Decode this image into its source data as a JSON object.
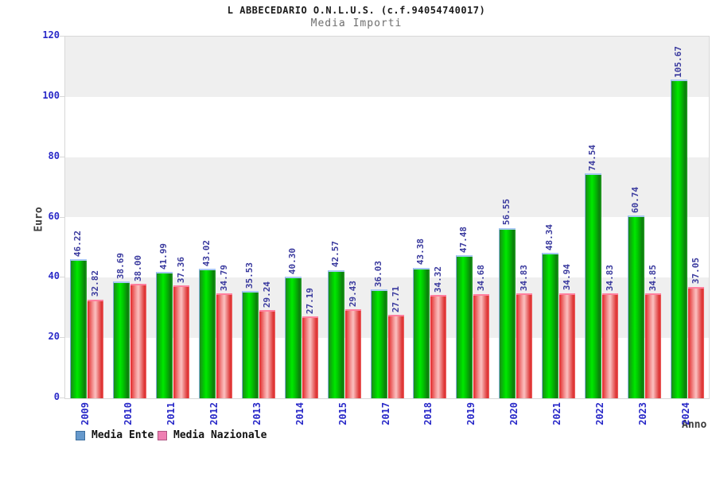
{
  "header": {
    "title": "L ABBECEDARIO O.N.L.U.S. (c.f.94054740017)",
    "subtitle": "Media Importi"
  },
  "axes": {
    "y_label": "Euro",
    "x_label": "Anno",
    "y_ticks": [
      0,
      20,
      40,
      60,
      80,
      100,
      120
    ]
  },
  "legend": {
    "items": [
      {
        "label": "Media Ente",
        "swatch_color": "#6699cc"
      },
      {
        "label": "Media Nazionale",
        "swatch_color": "#ee7fb2"
      }
    ]
  },
  "colors": {
    "bar_ente_main": "#00cc00",
    "bar_nazionale_main": "#ee3333",
    "tick_text": "#2929c8",
    "value_text": "#3a3a9e",
    "band_gray": "#efefef",
    "plot_border": "#d8d8d8"
  },
  "chart_data": {
    "type": "bar",
    "title": "L ABBECEDARIO O.N.L.U.S. (c.f.94054740017)",
    "subtitle": "Media Importi",
    "xlabel": "Anno",
    "ylabel": "Euro",
    "ylim": [
      0,
      120
    ],
    "y_tick_step": 20,
    "grid": "alternating-horizontal-bands",
    "legend_position": "bottom-left",
    "value_label_rotation": 90,
    "categories": [
      "2009",
      "2010",
      "2011",
      "2012",
      "2013",
      "2014",
      "2015",
      "2017",
      "2018",
      "2019",
      "2020",
      "2021",
      "2022",
      "2023",
      "2024"
    ],
    "series": [
      {
        "name": "Media Ente",
        "values": [
          46.22,
          38.69,
          41.99,
          43.02,
          35.53,
          40.3,
          42.57,
          36.03,
          43.38,
          47.48,
          56.55,
          48.34,
          74.54,
          60.74,
          105.67
        ]
      },
      {
        "name": "Media Nazionale",
        "values": [
          32.82,
          38.0,
          37.36,
          34.79,
          29.24,
          27.19,
          29.43,
          27.71,
          34.32,
          34.68,
          34.83,
          34.94,
          34.83,
          34.85,
          37.05
        ]
      }
    ]
  }
}
